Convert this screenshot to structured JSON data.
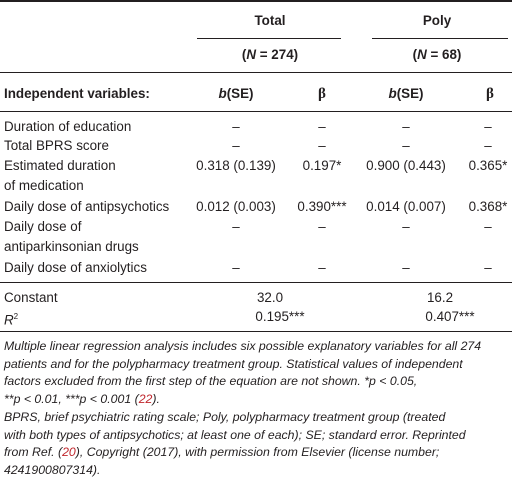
{
  "header": {
    "groups": [
      {
        "label": "Total",
        "n_prefix": "(",
        "n_var": "N",
        "n_suffix": " = 274)"
      },
      {
        "label": "Poly",
        "n_prefix": "(",
        "n_var": "N",
        "n_suffix": " = 68)"
      }
    ],
    "row_label": "Independent variables:",
    "col_b_var": "b",
    "col_b_rest": "(SE)",
    "col_beta": "β"
  },
  "rows": [
    {
      "label": "Duration of education",
      "label2": "",
      "t_b": "–",
      "t_beta": "–",
      "p_b": "–",
      "p_beta": "–"
    },
    {
      "label": "Total BPRS score",
      "label2": "",
      "t_b": "–",
      "t_beta": "–",
      "p_b": "–",
      "p_beta": "–"
    },
    {
      "label": "Estimated duration",
      "label2": "of medication",
      "t_b": "0.318 (0.139)",
      "t_beta": "0.197*",
      "p_b": "0.900 (0.443)",
      "p_beta": "0.365*"
    },
    {
      "label": "Daily dose of antipsychotics",
      "label2": "",
      "t_b": "0.012 (0.003)",
      "t_beta": "0.390***",
      "p_b": "0.014 (0.007)",
      "p_beta": "0.368*"
    },
    {
      "label": "Daily dose of",
      "label2": "antiparkinsonian drugs",
      "t_b": "–",
      "t_beta": "–",
      "p_b": "–",
      "p_beta": "–"
    },
    {
      "label": "Daily dose of anxiolytics",
      "label2": "",
      "t_b": "–",
      "t_beta": "–",
      "p_b": "–",
      "p_beta": "–"
    }
  ],
  "constant": {
    "label": "Constant",
    "total": "32.0",
    "poly": "16.2"
  },
  "r2": {
    "label": "R",
    "sup": "2",
    "total": "0.195***",
    "poly": "0.407***"
  },
  "footnote1": {
    "l1": "Multiple linear regression analysis includes six possible explanatory variables for all 274",
    "l2": "patients and for the polypharmacy treatment group. Statistical values of independent",
    "l3": "factors excluded from the first step of the equation are not shown. *p < 0.05,",
    "l4_pre": "**p < 0.01, ***p < 0.001 (",
    "l4_ref": "22",
    "l4_post": ")."
  },
  "footnote2": {
    "l1": "BPRS, brief psychiatric rating scale; Poly, polypharmacy treatment group (treated",
    "l2": "with both types of antipsychotics; at least one of each); SE; standard error. Reprinted",
    "l3_pre": "from Ref. (",
    "l3_ref": "20",
    "l3_post": "), Copyright (2017), with permission from Elsevier (license number;",
    "l4": "4241900807314)."
  }
}
